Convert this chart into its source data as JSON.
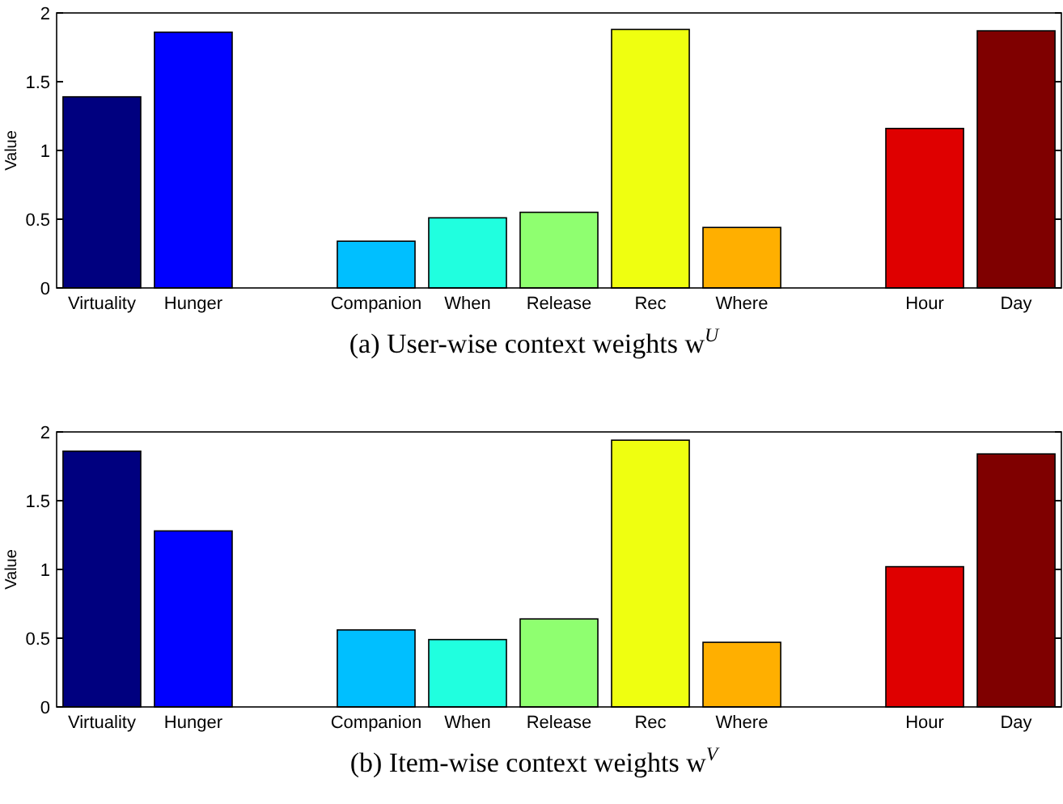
{
  "chart_data": [
    {
      "type": "bar",
      "title": "(a) User-wise context weights w$^{U}$",
      "ylabel": "Value",
      "categories": [
        "Virtuality",
        "Hunger",
        null,
        "Companion",
        "When",
        "Release",
        "Rec",
        "Where",
        null,
        "Hour",
        "Day"
      ],
      "values": [
        1.39,
        1.86,
        null,
        0.34,
        0.51,
        0.55,
        1.88,
        0.44,
        null,
        1.16,
        1.87
      ],
      "colors": [
        "#00007f",
        "#0000ff",
        null,
        "#00bfff",
        "#20ffdf",
        "#8fff70",
        "#efff10",
        "#ffaf00",
        null,
        "#df0000",
        "#7f0000"
      ],
      "ylim": [
        0,
        2
      ],
      "yticks": [
        0,
        0.5,
        1,
        1.5,
        2
      ]
    },
    {
      "type": "bar",
      "title": "(b) Item-wise context weights w$^{V}$",
      "ylabel": "Value",
      "categories": [
        "Virtuality",
        "Hunger",
        null,
        "Companion",
        "When",
        "Release",
        "Rec",
        "Where",
        null,
        "Hour",
        "Day"
      ],
      "values": [
        1.86,
        1.28,
        null,
        0.56,
        0.49,
        0.64,
        1.94,
        0.47,
        null,
        1.02,
        1.84
      ],
      "colors": [
        "#00007f",
        "#0000ff",
        null,
        "#00bfff",
        "#20ffdf",
        "#8fff70",
        "#efff10",
        "#ffaf00",
        null,
        "#df0000",
        "#7f0000"
      ],
      "ylim": [
        0,
        2
      ],
      "yticks": [
        0,
        0.5,
        1,
        1.5,
        2
      ]
    }
  ]
}
